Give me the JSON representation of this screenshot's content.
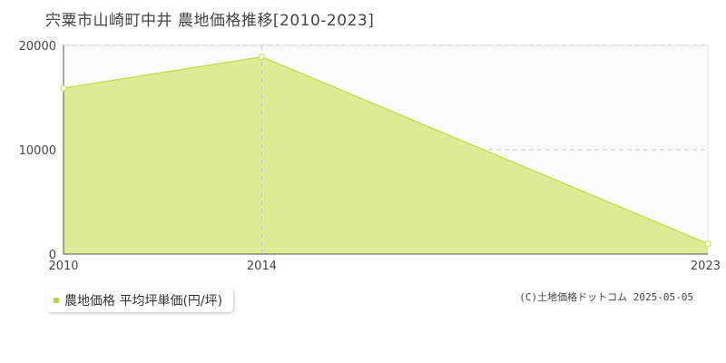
{
  "chart_data": {
    "type": "area",
    "title": "宍粟市山崎町中井 農地価格推移[2010-2023]",
    "x": [
      2010,
      2014,
      2023
    ],
    "series": [
      {
        "name": "農地価格 平均坪単価(円/坪)",
        "values": [
          15900,
          18900,
          1000
        ]
      }
    ],
    "xticks": [
      "2010",
      "2014",
      "2023"
    ],
    "yticks": [
      "0",
      "10000",
      "20000"
    ],
    "xlim": [
      2010,
      2023
    ],
    "ylim": [
      0,
      20000
    ],
    "grid": true,
    "legend_position": "bottom-left",
    "colors": {
      "fill": "#dbec95",
      "line": "#c5e05a",
      "swatch": "#b5d64a"
    }
  },
  "copyright": "(C)土地価格ドットコム 2025-05-05"
}
